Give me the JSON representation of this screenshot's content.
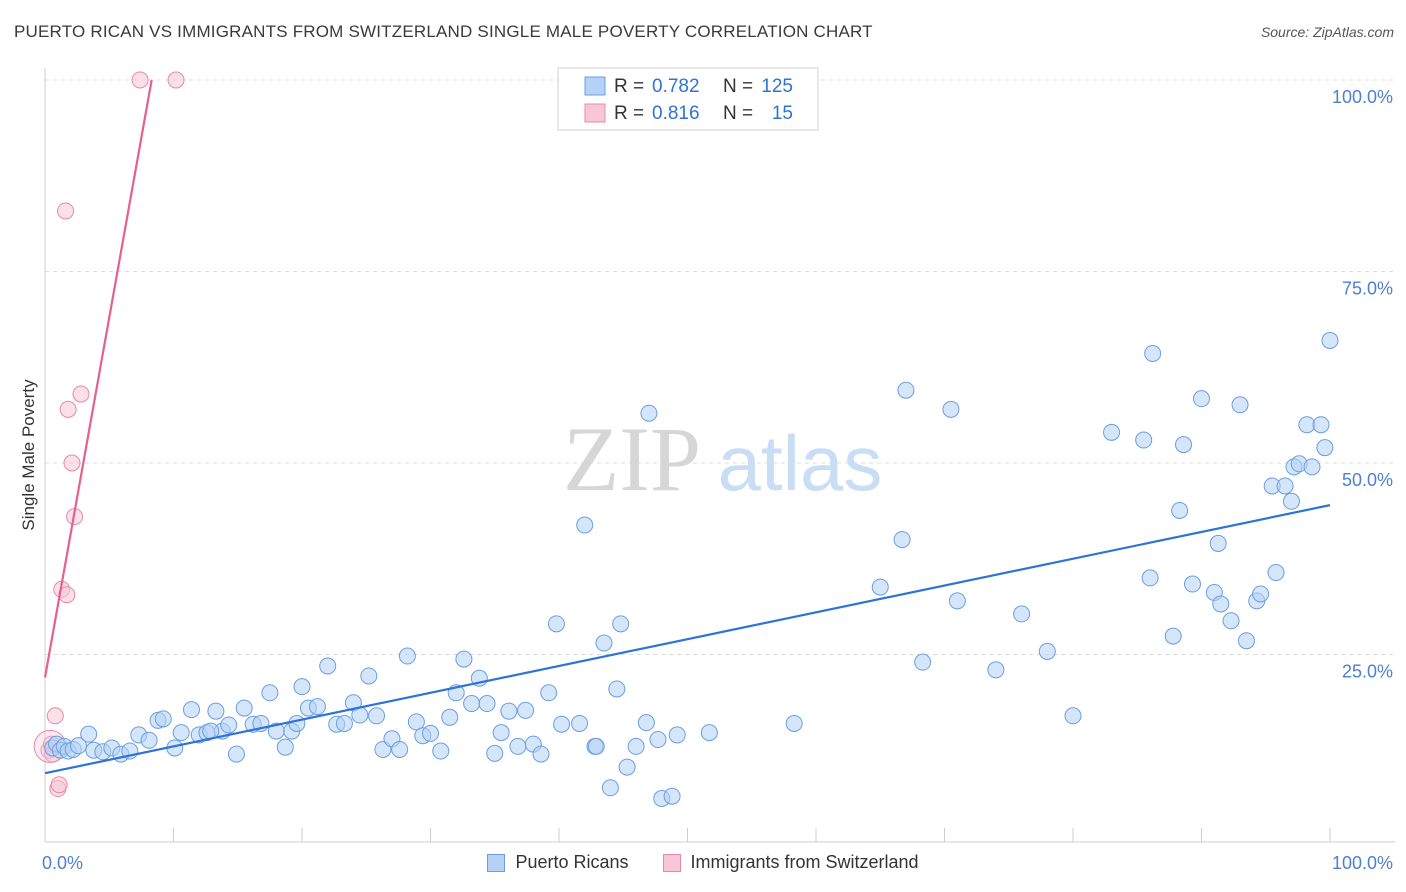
{
  "title": "PUERTO RICAN VS IMMIGRANTS FROM SWITZERLAND SINGLE MALE POVERTY CORRELATION CHART",
  "source": "Source: ZipAtlas.com",
  "watermark": {
    "zip": "ZIP",
    "atlas": "atlas"
  },
  "colors": {
    "blue_fill": "#b5d1f5",
    "blue_stroke": "#6a9ee0",
    "blue_line": "#2f73d6",
    "pink_fill": "#f8c6d6",
    "pink_stroke": "#e889a8",
    "pink_line": "#e5608e",
    "axis_text": "#4f7fcf",
    "grid": "#dcdcdc"
  },
  "legend_top": {
    "rows": [
      {
        "series": "blue",
        "r_label": "R =",
        "r_value": "0.782",
        "n_label": "N =",
        "n_value": "125"
      },
      {
        "series": "pink",
        "r_label": "R =",
        "r_value": "0.816",
        "n_label": "N =",
        "n_value": "15"
      }
    ]
  },
  "legend_bottom": [
    {
      "series": "blue",
      "label": "Puerto Ricans"
    },
    {
      "series": "pink",
      "label": "Immigrants from Switzerland"
    }
  ],
  "chart_data": {
    "type": "scatter",
    "title": "PUERTO RICAN VS IMMIGRANTS FROM SWITZERLAND SINGLE MALE POVERTY CORRELATION CHART",
    "xlabel": "",
    "ylabel": "Single Male Poverty",
    "xlim": [
      0,
      100
    ],
    "ylim": [
      0,
      100
    ],
    "x_tick_labels": [
      {
        "value": 0,
        "label": "0.0%"
      },
      {
        "value": 100,
        "label": "100.0%"
      }
    ],
    "y_tick_labels": [
      {
        "value": 25,
        "label": "25.0%"
      },
      {
        "value": 50,
        "label": "50.0%"
      },
      {
        "value": 75,
        "label": "75.0%"
      },
      {
        "value": 100,
        "label": "100.0%"
      }
    ],
    "grid": true,
    "series": [
      {
        "name": "Puerto Ricans",
        "color": "blue",
        "trendline": {
          "x": [
            0,
            100
          ],
          "y": [
            9.5,
            44.5
          ]
        },
        "points": [
          [
            0.6,
            12.8
          ],
          [
            0.9,
            13.3
          ],
          [
            1.2,
            12.5
          ],
          [
            1.5,
            13.0
          ],
          [
            1.8,
            12.4
          ],
          [
            2.2,
            12.6
          ],
          [
            2.6,
            13.1
          ],
          [
            3.4,
            14.6
          ],
          [
            3.8,
            12.5
          ],
          [
            4.5,
            12.3
          ],
          [
            5.2,
            12.8
          ],
          [
            5.9,
            12.0
          ],
          [
            6.6,
            12.4
          ],
          [
            7.3,
            14.5
          ],
          [
            8.1,
            13.8
          ],
          [
            8.8,
            16.4
          ],
          [
            9.2,
            16.6
          ],
          [
            10.1,
            12.8
          ],
          [
            10.6,
            14.8
          ],
          [
            11.4,
            17.8
          ],
          [
            12.0,
            14.5
          ],
          [
            12.6,
            14.8
          ],
          [
            13.3,
            17.6
          ],
          [
            13.8,
            15.0
          ],
          [
            14.3,
            15.8
          ],
          [
            14.9,
            12.0
          ],
          [
            15.5,
            18.0
          ],
          [
            16.2,
            15.9
          ],
          [
            16.8,
            16.0
          ],
          [
            17.5,
            20.0
          ],
          [
            18.0,
            15.0
          ],
          [
            18.7,
            12.9
          ],
          [
            19.2,
            15.0
          ],
          [
            20.0,
            20.8
          ],
          [
            20.5,
            18.0
          ],
          [
            21.2,
            18.2
          ],
          [
            22.0,
            23.5
          ],
          [
            22.7,
            15.9
          ],
          [
            23.3,
            16.0
          ],
          [
            24.0,
            18.7
          ],
          [
            24.5,
            17.1
          ],
          [
            25.2,
            22.2
          ],
          [
            25.8,
            17.0
          ],
          [
            26.3,
            12.6
          ],
          [
            27.0,
            14.0
          ],
          [
            27.6,
            12.6
          ],
          [
            28.2,
            24.8
          ],
          [
            28.9,
            16.2
          ],
          [
            29.4,
            14.4
          ],
          [
            30.0,
            14.7
          ],
          [
            30.8,
            12.4
          ],
          [
            31.5,
            16.8
          ],
          [
            32.0,
            20.0
          ],
          [
            32.6,
            24.4
          ],
          [
            33.2,
            18.6
          ],
          [
            33.8,
            21.9
          ],
          [
            34.4,
            18.6
          ],
          [
            35.0,
            12.1
          ],
          [
            35.5,
            14.8
          ],
          [
            36.1,
            17.6
          ],
          [
            36.8,
            13.0
          ],
          [
            37.4,
            17.7
          ],
          [
            38.0,
            13.3
          ],
          [
            38.6,
            12.0
          ],
          [
            39.2,
            20.0
          ],
          [
            39.8,
            29.0
          ],
          [
            40.2,
            15.9
          ],
          [
            41.6,
            16.0
          ],
          [
            42.8,
            13.0
          ],
          [
            44.0,
            7.6
          ],
          [
            44.5,
            20.5
          ],
          [
            45.3,
            10.3
          ],
          [
            46.0,
            13.0
          ],
          [
            44.8,
            29.0
          ],
          [
            43.5,
            26.5
          ],
          [
            46.8,
            16.1
          ],
          [
            47.7,
            13.9
          ],
          [
            48.0,
            6.2
          ],
          [
            48.8,
            6.5
          ],
          [
            49.2,
            14.5
          ],
          [
            42.0,
            41.9
          ],
          [
            42.9,
            13.0
          ],
          [
            47.0,
            56.5
          ],
          [
            51.7,
            14.8
          ],
          [
            58.3,
            16.0
          ],
          [
            65.0,
            33.8
          ],
          [
            66.7,
            40.0
          ],
          [
            67.0,
            59.5
          ],
          [
            68.3,
            24.0
          ],
          [
            70.5,
            57.0
          ],
          [
            71.0,
            32.0
          ],
          [
            74.0,
            23.0
          ],
          [
            76.0,
            30.3
          ],
          [
            78.0,
            25.4
          ],
          [
            80.0,
            17.0
          ],
          [
            83.0,
            54.0
          ],
          [
            85.5,
            53.0
          ],
          [
            86.0,
            35.0
          ],
          [
            86.2,
            64.3
          ],
          [
            87.8,
            27.4
          ],
          [
            88.3,
            43.8
          ],
          [
            88.6,
            52.4
          ],
          [
            89.3,
            34.2
          ],
          [
            90.0,
            58.4
          ],
          [
            91.0,
            33.1
          ],
          [
            91.3,
            39.5
          ],
          [
            91.5,
            31.6
          ],
          [
            92.3,
            29.4
          ],
          [
            93.0,
            57.6
          ],
          [
            93.5,
            26.8
          ],
          [
            94.3,
            32.0
          ],
          [
            94.6,
            32.9
          ],
          [
            95.5,
            47.0
          ],
          [
            95.8,
            35.7
          ],
          [
            96.5,
            47.0
          ],
          [
            97.0,
            45.0
          ],
          [
            97.2,
            49.5
          ],
          [
            97.6,
            49.9
          ],
          [
            98.2,
            55.0
          ],
          [
            98.6,
            49.5
          ],
          [
            99.3,
            55.0
          ],
          [
            99.6,
            52.0
          ],
          [
            100.0,
            66.0
          ],
          [
            19.6,
            16.0
          ],
          [
            12.9,
            15.0
          ]
        ]
      },
      {
        "name": "Immigrants from Switzerland",
        "color": "pink",
        "trendline": {
          "x": [
            0,
            8.3
          ],
          "y": [
            22.0,
            100.0
          ]
        },
        "points": [
          [
            0.3,
            12.5
          ],
          [
            0.5,
            13.3
          ],
          [
            0.8,
            17.0
          ],
          [
            1.0,
            7.5
          ],
          [
            1.1,
            8.0
          ],
          [
            1.3,
            33.5
          ],
          [
            1.6,
            82.9
          ],
          [
            1.7,
            32.8
          ],
          [
            1.8,
            57.0
          ],
          [
            2.1,
            50.0
          ],
          [
            2.3,
            43.0
          ],
          [
            2.8,
            59.0
          ],
          [
            7.4,
            100.0
          ],
          [
            10.2,
            100.0
          ],
          [
            0.6,
            12.0
          ]
        ]
      }
    ]
  }
}
